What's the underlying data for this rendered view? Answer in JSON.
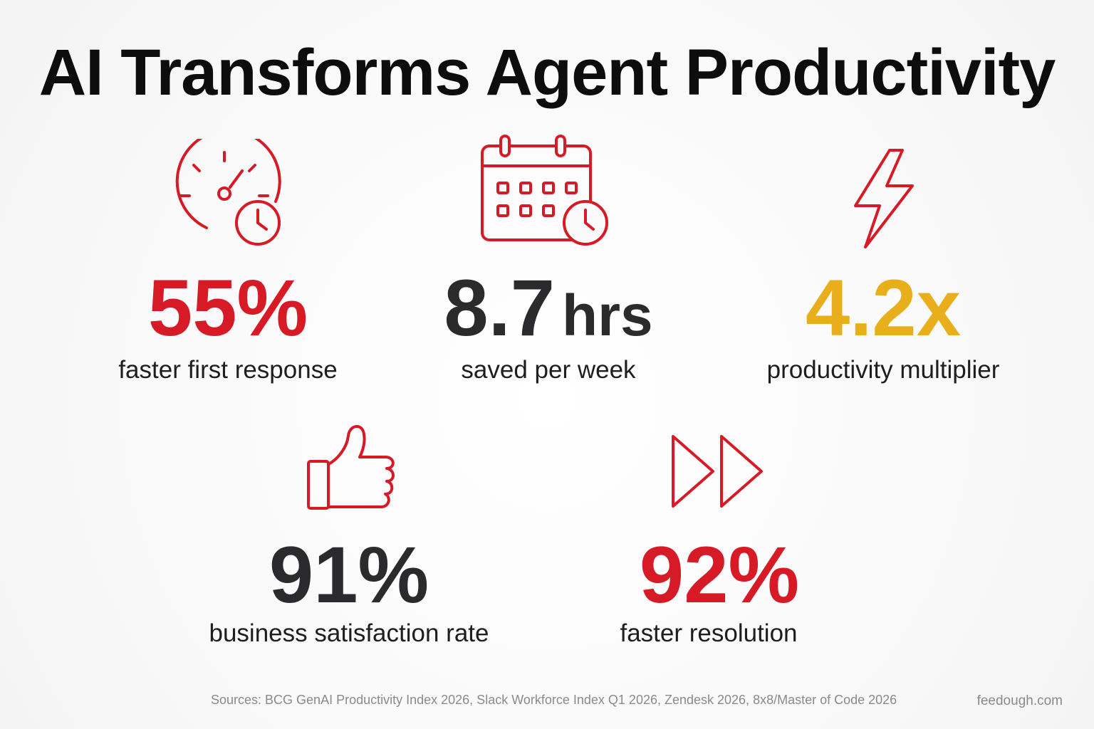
{
  "title": "AI Transforms Agent Productivity",
  "colors": {
    "red": "#d61a26",
    "dark": "#2b2b2e",
    "gold": "#e9ae1c"
  },
  "stats": [
    {
      "icon": "speedometer-clock-icon",
      "value": "55%",
      "label": "faster first response"
    },
    {
      "icon": "calendar-clock-icon",
      "value": "8.7",
      "unit": "hrs",
      "label": "saved per week"
    },
    {
      "icon": "lightning-bolt-icon",
      "value": "4.2x",
      "label": "productivity multiplier"
    },
    {
      "icon": "thumbs-up-icon",
      "value": "91%",
      "label": "business satisfaction rate"
    },
    {
      "icon": "fast-forward-icon",
      "value": "92%",
      "label": "faster resolution"
    }
  ],
  "sources": "Sources: BCG GenAI Productivity Index 2026, Slack Workforce Index Q1 2026, Zendesk 2026, 8x8/Master of Code 2026",
  "brand": "feedough.com"
}
